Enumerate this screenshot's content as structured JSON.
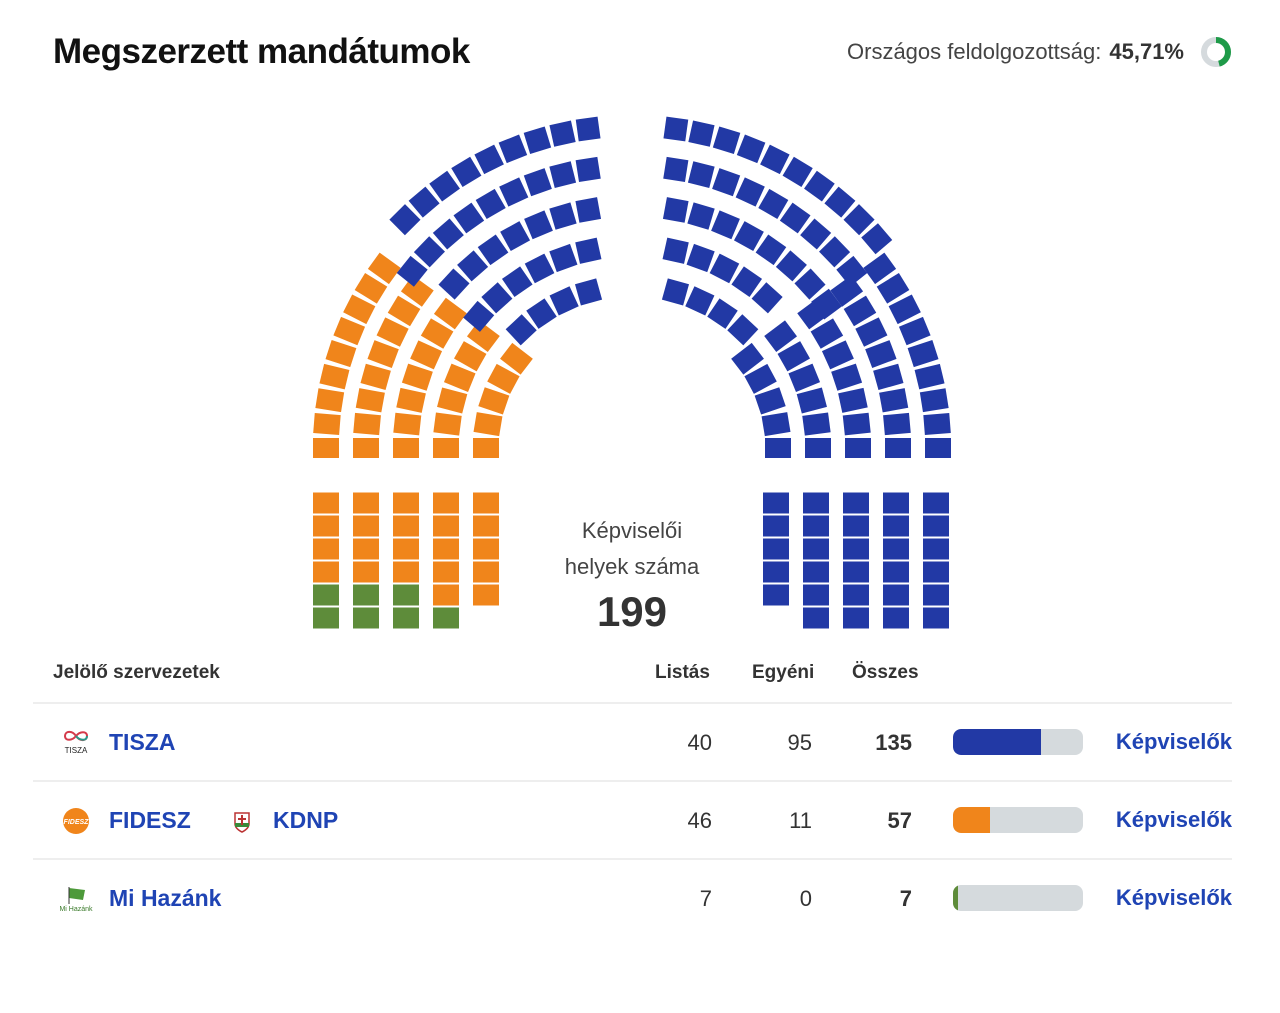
{
  "header": {
    "title": "Megszerzett mandátumok",
    "progress_label": "Országos feldolgozottság:",
    "progress_value": "45,71%",
    "progress_fraction": 0.4571,
    "progress_color": "#1e9a48"
  },
  "chart_data": {
    "type": "parliament",
    "center_label_1": "Képviselői",
    "center_label_2": "helyek száma",
    "total_seats": "199",
    "series": [
      {
        "name": "TISZA",
        "seats": 135,
        "color": "#2239a5"
      },
      {
        "name": "FIDESZ - KDNP",
        "seats": 57,
        "color": "#f0851b"
      },
      {
        "name": "Mi Hazánk",
        "seats": 7,
        "color": "#5e8c3a"
      }
    ]
  },
  "table": {
    "headers": {
      "org": "Jelölő szervezetek",
      "list": "Listás",
      "individual": "Egyéni",
      "total": "Összes"
    },
    "rows": [
      {
        "names": [
          "TISZA"
        ],
        "logo_text": "TISZA",
        "list": "40",
        "individual": "95",
        "total": "135",
        "share": 0.678,
        "color": "#2239a5",
        "link": "Képviselők"
      },
      {
        "names": [
          "FIDESZ",
          "KDNP"
        ],
        "logo_text": "FIDESZ",
        "list": "46",
        "individual": "11",
        "total": "57",
        "share": 0.286,
        "color": "#f0851b",
        "link": "Képviselők"
      },
      {
        "names": [
          "Mi Hazánk"
        ],
        "logo_text": "Mi Hazánk",
        "list": "7",
        "individual": "0",
        "total": "7",
        "share": 0.035,
        "color": "#5e8c3a",
        "link": "Képviselők"
      }
    ]
  }
}
